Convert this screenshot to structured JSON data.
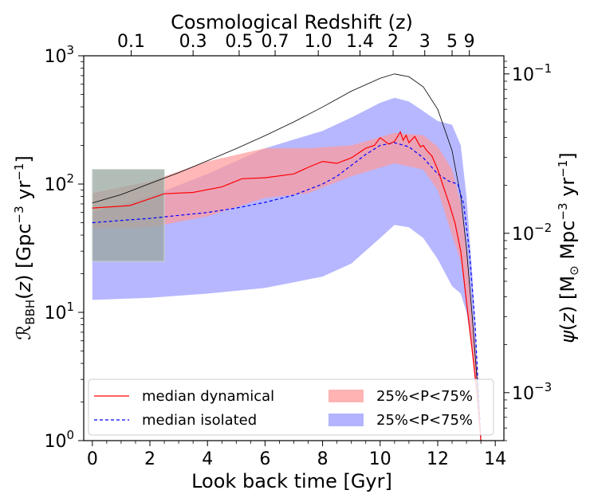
{
  "chart_data": {
    "type": "line",
    "title": "",
    "xlabel": "Look back time [Gyr]",
    "xlim": [
      -0.3,
      14.3
    ],
    "x_ticks": [
      0,
      2,
      4,
      6,
      8,
      10,
      12,
      14
    ],
    "ylabel_left": "ℛ_BBH(z) [Gpc⁻³ yr⁻¹]",
    "ylim_left": [
      1,
      1000
    ],
    "yscale_left": "log",
    "y_left_ticks": [
      {
        "base": "10",
        "exp": "0",
        "value": 1
      },
      {
        "base": "10",
        "exp": "1",
        "value": 10
      },
      {
        "base": "10",
        "exp": "2",
        "value": 100
      },
      {
        "base": "10",
        "exp": "3",
        "value": 1000
      }
    ],
    "ylabel_right": "ψ(z) [M⊙ Mpc⁻³ yr⁻¹]",
    "ylim_right": [
      0.0005,
      0.13
    ],
    "yscale_right": "log",
    "y_right_ticks": [
      {
        "base": "10",
        "exp": "−3",
        "value": 0.001
      },
      {
        "base": "10",
        "exp": "−2",
        "value": 0.01
      },
      {
        "base": "10",
        "exp": "−1",
        "value": 0.1
      }
    ],
    "top_axis_label": "Cosmological Redshift (z)",
    "top_ticks": [
      {
        "label": "0.1",
        "t": 1.35
      },
      {
        "label": "0.3",
        "t": 3.5
      },
      {
        "label": "0.5",
        "t": 5.1
      },
      {
        "label": "0.7",
        "t": 6.35
      },
      {
        "label": "1.0",
        "t": 7.85
      },
      {
        "label": "1.4",
        "t": 9.3
      },
      {
        "label": "2",
        "t": 10.45
      },
      {
        "label": "3",
        "t": 11.55
      },
      {
        "label": "5",
        "t": 12.5
      },
      {
        "label": "9",
        "t": 13.1
      }
    ],
    "legend": {
      "placement": "lower-center",
      "entries": [
        {
          "label": "median dynamical",
          "kind": "line",
          "color": "#ff0000",
          "dash": false
        },
        {
          "label": "median isolated",
          "kind": "line",
          "color": "#0000ff",
          "dash": true
        },
        {
          "label": "25%<P<75%",
          "kind": "patch",
          "color": "#ff9999"
        },
        {
          "label": "25%<P<75%",
          "kind": "patch",
          "color": "#9999ff"
        }
      ]
    },
    "colors": {
      "dynamical": "#ff0000",
      "isolated": "#0000ff",
      "band_dynamical": "#ff9999",
      "band_isolated": "#9999ff",
      "sfr": "#000000",
      "observed_box": "#9aa7a0"
    },
    "series": [
      {
        "name": "median dynamical",
        "axis": "left",
        "x": [
          0,
          1.3,
          2.5,
          3.5,
          4.5,
          5.2,
          6.0,
          7.0,
          7.5,
          8.0,
          8.5,
          9.0,
          9.5,
          9.8,
          10.0,
          10.3,
          10.5,
          10.7,
          10.8,
          10.9,
          11.0,
          11.2,
          11.4,
          11.5,
          11.6,
          11.8,
          12.0,
          12.2,
          12.4,
          12.6,
          12.8,
          13.0,
          13.2,
          13.4,
          13.5
        ],
        "values": [
          65,
          68,
          84,
          86,
          95,
          110,
          112,
          120,
          135,
          150,
          145,
          160,
          190,
          200,
          230,
          205,
          215,
          255,
          220,
          240,
          210,
          235,
          195,
          200,
          185,
          165,
          130,
          95,
          70,
          50,
          30,
          12,
          5,
          2,
          1
        ]
      },
      {
        "name": "median isolated",
        "axis": "left",
        "x": [
          0,
          1,
          2,
          3,
          4,
          5,
          6,
          7,
          8,
          8.5,
          9,
          9.5,
          10.0,
          10.5,
          11.0,
          11.5,
          12.0,
          12.4,
          12.7,
          12.9,
          13.1,
          13.3,
          13.5
        ],
        "values": [
          50,
          52,
          54,
          57,
          60,
          65,
          72,
          82,
          100,
          115,
          140,
          170,
          200,
          210,
          195,
          160,
          120,
          105,
          100,
          70,
          30,
          8,
          1
        ]
      },
      {
        "name": "25%<P<75%",
        "kind": "band",
        "axis": "left",
        "x": [
          0,
          2,
          4,
          6,
          7.5,
          9,
          10.5,
          11.5,
          12.0,
          12.5,
          12.8,
          13.0,
          13.2,
          13.4,
          13.5
        ],
        "low": [
          45,
          46,
          56,
          78,
          85,
          115,
          145,
          130,
          90,
          40,
          25,
          12,
          5,
          1.5,
          1
        ],
        "high": [
          85,
          105,
          150,
          190,
          190,
          200,
          250,
          240,
          195,
          130,
          70,
          30,
          10,
          3,
          1
        ]
      },
      {
        "name": "25%<P<75%",
        "kind": "band",
        "axis": "left",
        "x": [
          0,
          2,
          4,
          6,
          8,
          9,
          10,
          10.5,
          11,
          11.5,
          12.0,
          12.5,
          12.8,
          13.0,
          13.2,
          13.4,
          13.5
        ],
        "low": [
          12.5,
          13,
          14,
          15.5,
          19,
          24,
          38,
          48,
          46,
          38,
          26,
          16,
          14,
          10,
          5,
          1.5,
          1
        ],
        "high": [
          60,
          80,
          120,
          190,
          260,
          330,
          430,
          470,
          440,
          370,
          310,
          290,
          200,
          80,
          20,
          3,
          1
        ]
      },
      {
        "name": "",
        "kind": "box",
        "axis": "left",
        "x": [
          0,
          2.5
        ],
        "low": 25,
        "high": 130
      },
      {
        "name": "",
        "axis": "right",
        "x": [
          0,
          1,
          2,
          3,
          4,
          5,
          6,
          7,
          8,
          9,
          10.0,
          10.5,
          11.0,
          11.5,
          12.0,
          12.5,
          12.8,
          13.0,
          13.2,
          13.4,
          13.5
        ],
        "values": [
          0.0155,
          0.0175,
          0.0205,
          0.024,
          0.0285,
          0.034,
          0.041,
          0.05,
          0.062,
          0.078,
          0.094,
          0.1,
          0.096,
          0.083,
          0.06,
          0.033,
          0.017,
          0.008,
          0.003,
          0.001,
          0.0005
        ]
      }
    ]
  }
}
